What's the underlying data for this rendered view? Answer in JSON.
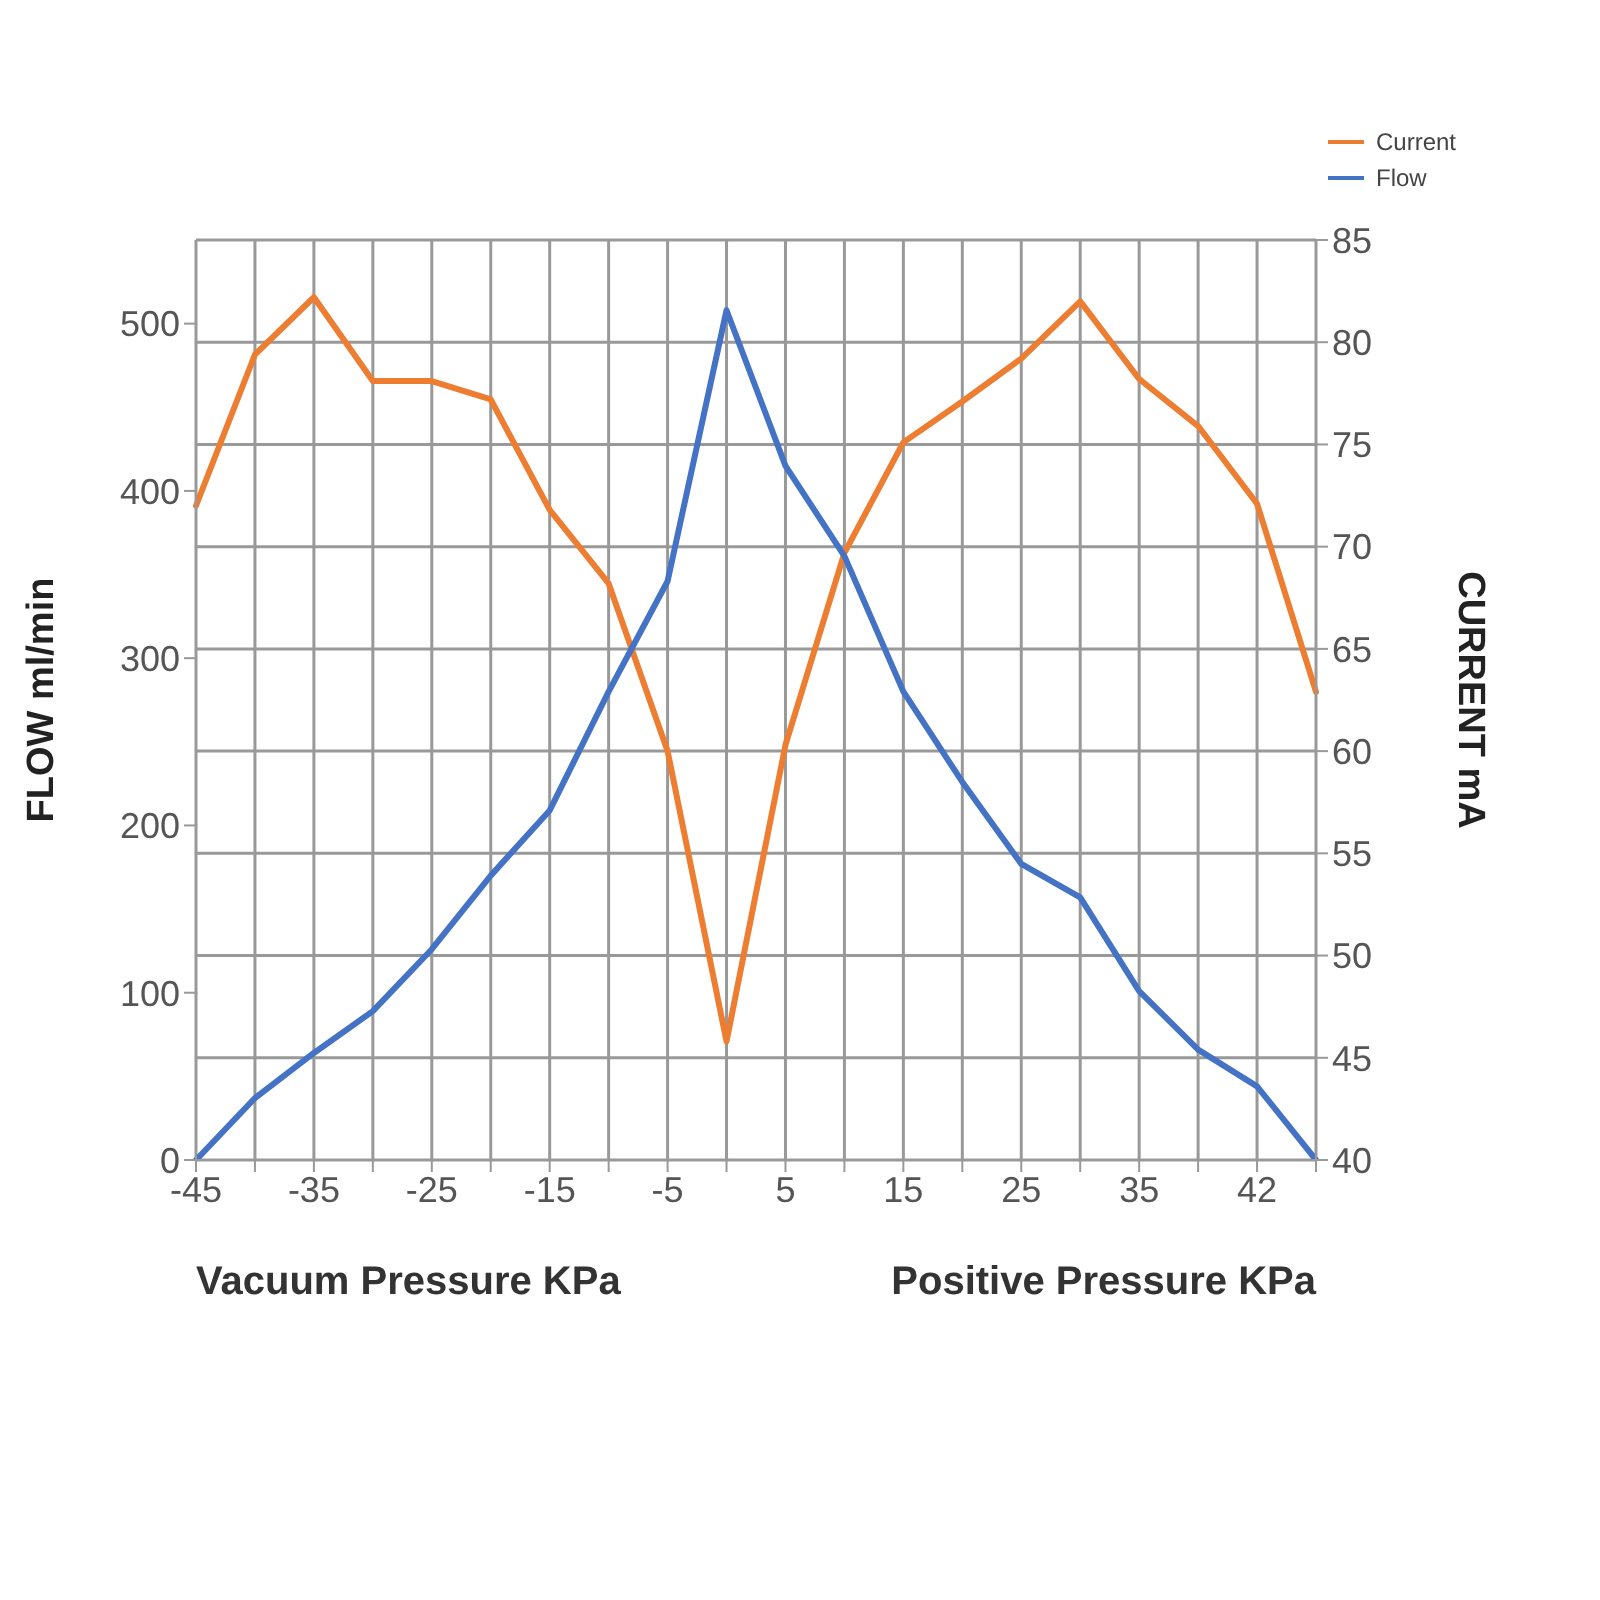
{
  "chart_data": {
    "type": "line",
    "ylabel": "FLOW ml/min",
    "y2label": "CURRENT mA",
    "annotations": [
      "Vacuum Pressure KPa",
      "Positive Pressure KPa"
    ],
    "categories": [
      "-45",
      null,
      "-35",
      null,
      "-25",
      null,
      "-15",
      null,
      "-5",
      null,
      "5",
      null,
      "15",
      null,
      "25",
      null,
      "35",
      null,
      "42",
      null
    ],
    "series": [
      {
        "name": "Current",
        "color": "#ed7d31",
        "axis": "y2",
        "values": [
          72,
          79.4,
          82.2,
          78.1,
          78.1,
          77.2,
          71.8,
          68.2,
          60,
          45.8,
          60.3,
          69.7,
          75.1,
          77.1,
          79.2,
          82,
          78.2,
          75.9,
          72.1,
          62.9
        ]
      },
      {
        "name": "Flow",
        "color": "#4472c4",
        "values": [
          0,
          37,
          64,
          89,
          126,
          170,
          209,
          280,
          346,
          508,
          415,
          361,
          280,
          226,
          177,
          157,
          101,
          66,
          44,
          0
        ]
      }
    ],
    "ylim": [
      0,
      550
    ],
    "yticks": [
      0,
      100,
      200,
      300,
      400,
      500
    ],
    "y2lim": [
      40,
      85
    ],
    "y2ticks": [
      40,
      45,
      50,
      55,
      60,
      65,
      70,
      75,
      80,
      85
    ],
    "grid": true,
    "legend": "top right",
    "marker": "none",
    "line_style": "solid"
  }
}
